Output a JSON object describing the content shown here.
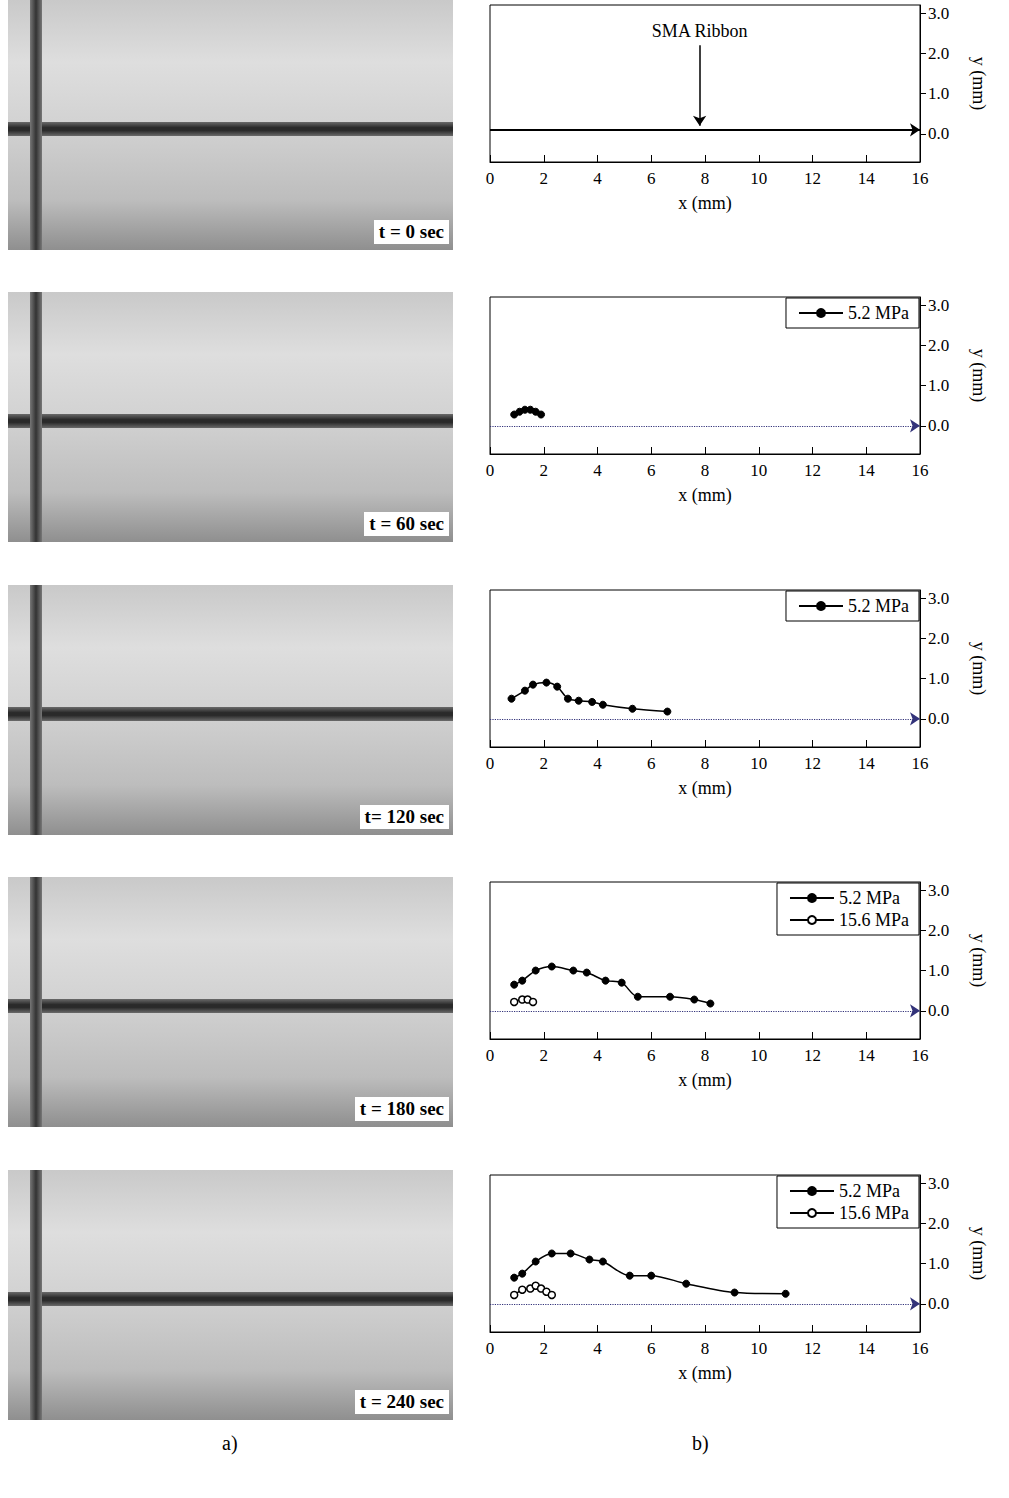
{
  "photos": [
    {
      "label": "t = 0 sec"
    },
    {
      "label": "t = 60 sec"
    },
    {
      "label": "t= 120 sec"
    },
    {
      "label": "t = 180 sec"
    },
    {
      "label": "t = 240 sec"
    }
  ],
  "panel_labels": [
    "a)",
    "b)"
  ],
  "chart_data": [
    {
      "type": "line",
      "x_label": "x (mm)",
      "y_label": "y (mm)",
      "xlim": [
        0,
        16
      ],
      "xticks": [
        0,
        2,
        4,
        6,
        8,
        10,
        12,
        14,
        16
      ],
      "ylim": [
        -0.7,
        3.2
      ],
      "yticks": [
        {
          "value": 0,
          "label": "0.0"
        },
        {
          "value": 1,
          "label": "1.0"
        },
        {
          "value": 2,
          "label": "2.0"
        },
        {
          "value": 3,
          "label": "3.0"
        }
      ],
      "grid": false,
      "reference_line": {
        "y": 0.1,
        "line_style": "solid"
      },
      "annotation": {
        "text": "SMA Ribbon",
        "x": 7.8,
        "y_text": 2.2,
        "y_arrow": 0.2
      },
      "series": []
    },
    {
      "type": "line",
      "x_label": "x (mm)",
      "y_label": "y (mm)",
      "xlim": [
        0,
        16
      ],
      "xticks": [
        0,
        2,
        4,
        6,
        8,
        10,
        12,
        14,
        16
      ],
      "ylim": [
        -0.7,
        3.2
      ],
      "yticks": [
        {
          "value": 0,
          "label": "0.0"
        },
        {
          "value": 1,
          "label": "1.0"
        },
        {
          "value": 2,
          "label": "2.0"
        },
        {
          "value": 3,
          "label": "3.0"
        }
      ],
      "grid": false,
      "legend": "upper right",
      "reference_line": {
        "y": 0,
        "line_style": "dotted"
      },
      "series": [
        {
          "name": "5.2 MPa",
          "color": "#000000",
          "marker": "circle",
          "x": [
            0.9,
            1.1,
            1.3,
            1.5,
            1.7,
            1.9
          ],
          "values": [
            0.28,
            0.35,
            0.4,
            0.4,
            0.35,
            0.28
          ]
        }
      ]
    },
    {
      "type": "line",
      "x_label": "x (mm)",
      "y_label": "y (mm)",
      "xlim": [
        0,
        16
      ],
      "xticks": [
        0,
        2,
        4,
        6,
        8,
        10,
        12,
        14,
        16
      ],
      "ylim": [
        -0.7,
        3.2
      ],
      "yticks": [
        {
          "value": 0,
          "label": "0.0"
        },
        {
          "value": 1,
          "label": "1.0"
        },
        {
          "value": 2,
          "label": "2.0"
        },
        {
          "value": 3,
          "label": "3.0"
        }
      ],
      "grid": false,
      "legend": "upper right",
      "reference_line": {
        "y": 0,
        "line_style": "dotted"
      },
      "series": [
        {
          "name": "5.2 MPa",
          "color": "#000000",
          "marker": "circle",
          "x": [
            0.8,
            1.3,
            1.6,
            2.1,
            2.5,
            2.9,
            3.3,
            3.8,
            4.2,
            5.3,
            6.6
          ],
          "values": [
            0.5,
            0.7,
            0.85,
            0.9,
            0.8,
            0.5,
            0.45,
            0.42,
            0.35,
            0.25,
            0.18
          ]
        }
      ]
    },
    {
      "type": "line",
      "x_label": "x (mm)",
      "y_label": "y (mm)",
      "xlim": [
        0,
        16
      ],
      "xticks": [
        0,
        2,
        4,
        6,
        8,
        10,
        12,
        14,
        16
      ],
      "ylim": [
        -0.7,
        3.2
      ],
      "yticks": [
        {
          "value": 0,
          "label": "0.0"
        },
        {
          "value": 1,
          "label": "1.0"
        },
        {
          "value": 2,
          "label": "2.0"
        },
        {
          "value": 3,
          "label": "3.0"
        }
      ],
      "grid": false,
      "legend": "upper right",
      "reference_line": {
        "y": 0,
        "line_style": "dotted"
      },
      "series": [
        {
          "name": "5.2 MPa",
          "color": "#000000",
          "marker": "circle",
          "x": [
            0.9,
            1.2,
            1.7,
            2.3,
            3.1,
            3.6,
            4.3,
            4.9,
            5.5,
            6.7,
            7.6,
            8.2
          ],
          "values": [
            0.65,
            0.75,
            1.0,
            1.1,
            1.0,
            0.95,
            0.75,
            0.7,
            0.35,
            0.35,
            0.28,
            0.18
          ]
        },
        {
          "name": "15.6 MPa",
          "color": "#000000",
          "marker": "open_circle",
          "x": [
            0.9,
            1.2,
            1.4,
            1.6
          ],
          "values": [
            0.22,
            0.28,
            0.28,
            0.22
          ]
        }
      ]
    },
    {
      "type": "line",
      "x_label": "x (mm)",
      "y_label": "y (mm)",
      "xlim": [
        0,
        16
      ],
      "xticks": [
        0,
        2,
        4,
        6,
        8,
        10,
        12,
        14,
        16
      ],
      "ylim": [
        -0.7,
        3.2
      ],
      "yticks": [
        {
          "value": 0,
          "label": "0.0"
        },
        {
          "value": 1,
          "label": "1.0"
        },
        {
          "value": 2,
          "label": "2.0"
        },
        {
          "value": 3,
          "label": "3.0"
        }
      ],
      "grid": false,
      "legend": "upper right",
      "reference_line": {
        "y": 0,
        "line_style": "dotted"
      },
      "series": [
        {
          "name": "5.2 MPa",
          "color": "#000000",
          "marker": "circle",
          "x": [
            0.9,
            1.2,
            1.7,
            2.3,
            3.0,
            3.7,
            4.2,
            5.2,
            6.0,
            7.3,
            9.1,
            11.0
          ],
          "values": [
            0.65,
            0.75,
            1.05,
            1.25,
            1.25,
            1.1,
            1.05,
            0.7,
            0.7,
            0.5,
            0.28,
            0.25
          ]
        },
        {
          "name": "15.6 MPa",
          "color": "#000000",
          "marker": "open_circle",
          "x": [
            0.9,
            1.2,
            1.5,
            1.7,
            1.9,
            2.1,
            2.3
          ],
          "values": [
            0.22,
            0.35,
            0.38,
            0.45,
            0.38,
            0.3,
            0.22
          ]
        }
      ]
    }
  ]
}
